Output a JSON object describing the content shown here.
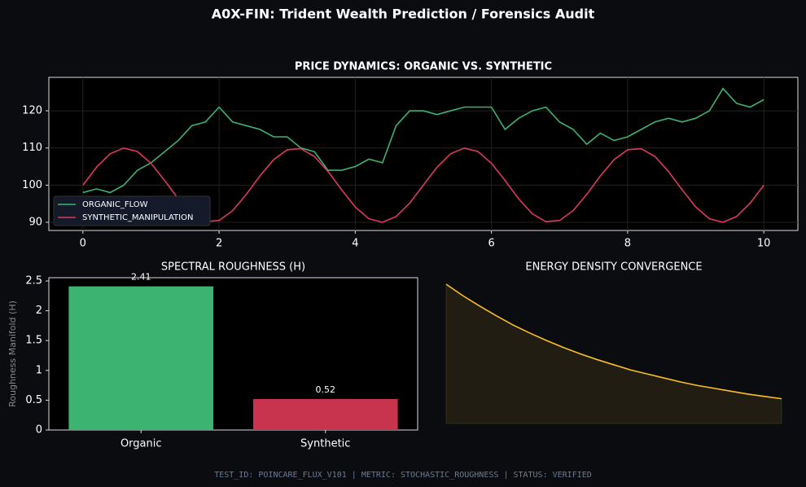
{
  "title": "A0X-FIN: Trident Wealth Prediction / Forensics Audit",
  "footer": "TEST_ID: POINCARE_FLUX_V101 | METRIC: STOCHASTIC_ROUGHNESS | STATUS: VERIFIED",
  "chart_data": [
    {
      "type": "line",
      "title": "PRICE DYNAMICS: ORGANIC VS. SYNTHETIC",
      "grid": true,
      "legend": "lower left",
      "xlim": [
        -0.5,
        10.5
      ],
      "xticks": [
        0,
        2,
        4,
        6,
        8,
        10
      ],
      "ylim": [
        87.8,
        129
      ],
      "yticks": [
        90,
        100,
        110,
        120
      ],
      "x": [
        0,
        0.2,
        0.4,
        0.6,
        0.8,
        1,
        1.2,
        1.4,
        1.6,
        1.8,
        2,
        2.2,
        2.4,
        2.6,
        2.8,
        3,
        3.2,
        3.4,
        3.6,
        3.8,
        4,
        4.2,
        4.4,
        4.6,
        4.8,
        5,
        5.2,
        5.4,
        5.6,
        5.8,
        6,
        6.2,
        6.4,
        6.6,
        6.8,
        7,
        7.2,
        7.4,
        7.6,
        7.8,
        8,
        8.2,
        8.4,
        8.6,
        8.8,
        9,
        9.2,
        9.4,
        9.6,
        9.8,
        10
      ],
      "series": [
        {
          "name": "ORGANIC_FLOW",
          "color": "#3cb371",
          "values": [
            98,
            99,
            98,
            100,
            104,
            106,
            109,
            112,
            116,
            117,
            121,
            117,
            116,
            115,
            113,
            113,
            110,
            109,
            104,
            104,
            105,
            107,
            106,
            116,
            120,
            120,
            119,
            120,
            121,
            121,
            121,
            115,
            118,
            120,
            121,
            117,
            115,
            111,
            114,
            112,
            113,
            115,
            117,
            118,
            117,
            118,
            120,
            126,
            122,
            121,
            123
          ]
        },
        {
          "name": "SYNTHETIC_MANIPULATION",
          "color": "#dc3a5a",
          "values": [
            100,
            104.82,
            108.44,
            109.98,
            109.05,
            105.88,
            101.25,
            96.32,
            92.29,
            90.18,
            90.49,
            93.15,
            97.51,
            102.49,
            106.85,
            109.51,
            109.82,
            107.71,
            103.68,
            98.75,
            94.12,
            90.95,
            90.02,
            91.56,
            95.18,
            100,
            104.82,
            108.44,
            109.98,
            109.05,
            105.88,
            101.25,
            96.32,
            92.29,
            90.18,
            90.49,
            93.15,
            97.51,
            102.49,
            106.85,
            109.51,
            109.82,
            107.71,
            103.68,
            98.75,
            94.12,
            90.95,
            90.02,
            91.56,
            95.18,
            100
          ]
        }
      ]
    },
    {
      "type": "bar",
      "title": "SPECTRAL ROUGHNESS (H)",
      "ylabel": "Roughness Manifold (H)",
      "categories": [
        "Organic",
        "Synthetic"
      ],
      "values": [
        2.41,
        0.52
      ],
      "colors": [
        "#3cb371",
        "#c8334d"
      ],
      "ylim": [
        0,
        2.555
      ],
      "yticks": [
        0,
        0.5,
        1,
        1.5,
        2,
        2.5
      ]
    },
    {
      "type": "area",
      "title": "ENERGY DENSITY CONVERGENCE",
      "color": "#fbbf24",
      "ylim": [
        0,
        2.42
      ],
      "values": [
        2.42,
        2.22,
        2.04,
        1.87,
        1.71,
        1.57,
        1.44,
        1.32,
        1.21,
        1.11,
        1.02,
        0.93,
        0.86,
        0.79,
        0.72,
        0.66,
        0.61,
        0.56,
        0.51,
        0.47,
        0.43
      ]
    }
  ]
}
